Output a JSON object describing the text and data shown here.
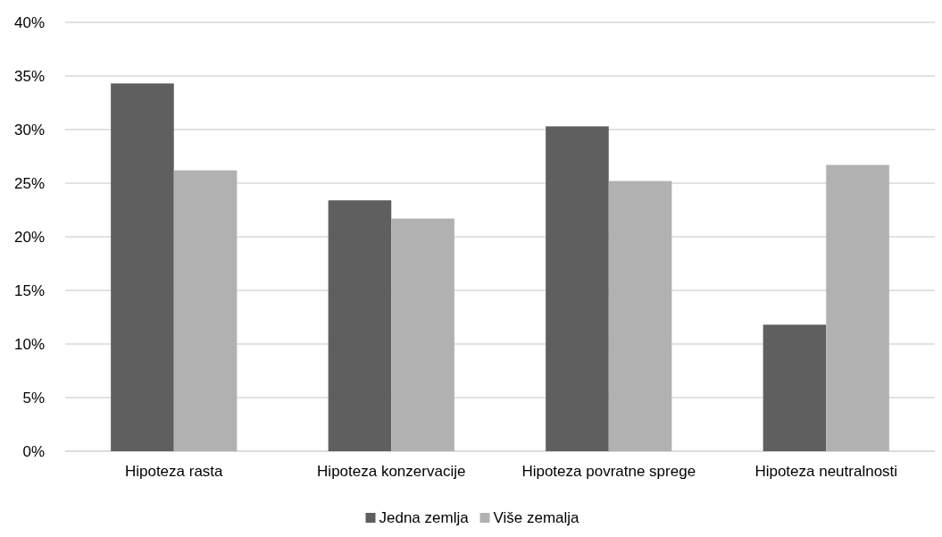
{
  "chart_data": {
    "type": "bar",
    "categories": [
      "Hipoteza rasta",
      "Hipoteza konzervacije",
      "Hipoteza povratne sprege",
      "Hipoteza neutralnosti"
    ],
    "series": [
      {
        "name": "Jedna zemlja",
        "color": "#5f5f5f",
        "values": [
          34.3,
          23.4,
          30.3,
          11.8
        ]
      },
      {
        "name": "Više zemalja",
        "color": "#b1b1b1",
        "values": [
          26.2,
          21.7,
          25.2,
          26.7
        ]
      }
    ],
    "ylim": [
      0,
      40
    ],
    "yticks": [
      {
        "value": 0,
        "label": "0%"
      },
      {
        "value": 5,
        "label": "5%"
      },
      {
        "value": 10,
        "label": "10%"
      },
      {
        "value": 15,
        "label": "15%"
      },
      {
        "value": 20,
        "label": "20%"
      },
      {
        "value": 25,
        "label": "25%"
      },
      {
        "value": 30,
        "label": "30%"
      },
      {
        "value": 35,
        "label": "35%"
      },
      {
        "value": 40,
        "label": "40%"
      }
    ],
    "grid": "y",
    "legend": "bottom"
  }
}
